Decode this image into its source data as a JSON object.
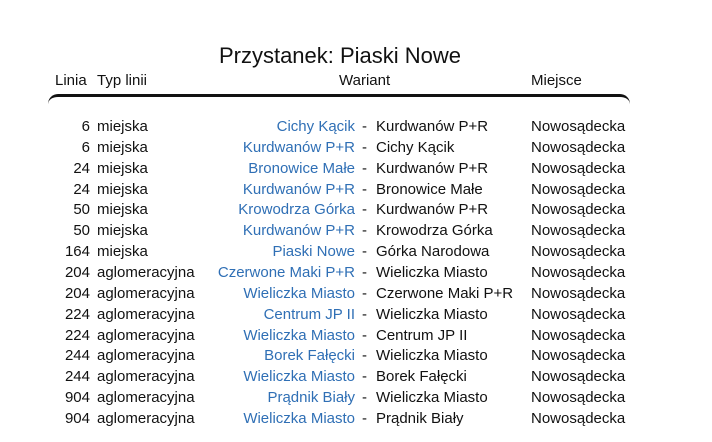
{
  "title": "Przystanek: Piaski Nowe",
  "headers": {
    "line": "Linia",
    "type": "Typ linii",
    "variant": "Wariant",
    "place": "Miejsce"
  },
  "colors": {
    "link": "#2f6fb5"
  },
  "rows": [
    {
      "line": "6",
      "type": "miejska",
      "from": "Cichy Kącik",
      "to": "Kurdwanów P+R",
      "place": "Nowosądecka"
    },
    {
      "line": "6",
      "type": "miejska",
      "from": "Kurdwanów P+R",
      "to": "Cichy Kącik",
      "place": "Nowosądecka"
    },
    {
      "line": "24",
      "type": "miejska",
      "from": "Bronowice Małe",
      "to": "Kurdwanów P+R",
      "place": "Nowosądecka"
    },
    {
      "line": "24",
      "type": "miejska",
      "from": "Kurdwanów P+R",
      "to": "Bronowice Małe",
      "place": "Nowosądecka"
    },
    {
      "line": "50",
      "type": "miejska",
      "from": "Krowodrza Górka",
      "to": "Kurdwanów P+R",
      "place": "Nowosądecka"
    },
    {
      "line": "50",
      "type": "miejska",
      "from": "Kurdwanów P+R",
      "to": "Krowodrza Górka",
      "place": "Nowosądecka"
    },
    {
      "line": "164",
      "type": "miejska",
      "from": "Piaski Nowe",
      "to": "Górka Narodowa",
      "place": "Nowosądecka"
    },
    {
      "line": "204",
      "type": "aglomeracyjna",
      "from": "Czerwone Maki P+R",
      "to": "Wieliczka Miasto",
      "place": "Nowosądecka"
    },
    {
      "line": "204",
      "type": "aglomeracyjna",
      "from": "Wieliczka Miasto",
      "to": "Czerwone Maki P+R",
      "place": "Nowosądecka"
    },
    {
      "line": "224",
      "type": "aglomeracyjna",
      "from": "Centrum JP II",
      "to": "Wieliczka Miasto",
      "place": "Nowosądecka"
    },
    {
      "line": "224",
      "type": "aglomeracyjna",
      "from": "Wieliczka Miasto",
      "to": "Centrum JP II",
      "place": "Nowosądecka"
    },
    {
      "line": "244",
      "type": "aglomeracyjna",
      "from": "Borek Fałęcki",
      "to": "Wieliczka Miasto",
      "place": "Nowosądecka"
    },
    {
      "line": "244",
      "type": "aglomeracyjna",
      "from": "Wieliczka Miasto",
      "to": "Borek Fałęcki",
      "place": "Nowosądecka"
    },
    {
      "line": "904",
      "type": "aglomeracyjna",
      "from": "Prądnik Biały",
      "to": "Wieliczka Miasto",
      "place": "Nowosądecka"
    },
    {
      "line": "904",
      "type": "aglomeracyjna",
      "from": "Wieliczka Miasto",
      "to": "Prądnik Biały",
      "place": "Nowosądecka"
    }
  ]
}
